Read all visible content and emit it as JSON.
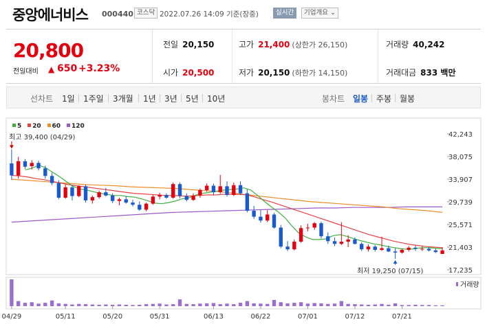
{
  "header": {
    "title": "중앙에너비스",
    "code": "000440",
    "market": "코스닥",
    "timestamp": "2022.07.26 14:09 기준(장중)",
    "realtime_label": "실시간",
    "company_label": "기업개요 ⌄"
  },
  "summary": {
    "price": "20,800",
    "change_label": "전일대비",
    "change_value": "650",
    "change_pct": "+3.23%",
    "prev_label": "전일",
    "prev_value": "20,150",
    "open_label": "시가",
    "open_value": "20,500",
    "high_label": "고가",
    "high_value": "21,400",
    "high_sub": "(상한가 26,150)",
    "low_label": "저가",
    "low_value": "20,150",
    "low_sub": "(하한가 14,150)",
    "volume_label": "거래량",
    "volume_value": "40,242",
    "amount_label": "거래대금",
    "amount_value": "833 백만"
  },
  "periods": {
    "label": "선차트",
    "items": [
      "1일",
      "1주일",
      "3개월",
      "1년",
      "3년",
      "5년",
      "10년"
    ],
    "candle_label": "봉차트",
    "candle_items": [
      "일봉",
      "주봉",
      "월봉"
    ],
    "candle_active": 0
  },
  "colors": {
    "up": "#e4000f",
    "down": "#1a5ad0",
    "ma5": "#3cb23c",
    "ma20": "#e84040",
    "ma60": "#f08c28",
    "ma120": "#9b59c6",
    "volume": "#9b6fd0"
  },
  "chart_data": {
    "type": "candlestick",
    "legend": [
      "5",
      "20",
      "60",
      "120"
    ],
    "y_ticks": [
      "42,243",
      "38,075",
      "33,907",
      "29,739",
      "25,571",
      "21,403",
      "17,235"
    ],
    "y_tick_values": [
      42243,
      38075,
      33907,
      29739,
      25571,
      21403,
      17235
    ],
    "ylim": [
      17235,
      42243
    ],
    "x_ticks": [
      "04/29",
      "05/11",
      "05/20",
      "05/31",
      "06/13",
      "06/22",
      "07/01",
      "07/12",
      "07/21"
    ],
    "x_tick_index": [
      0,
      8,
      15,
      22,
      30,
      37,
      44,
      51,
      58
    ],
    "high_annotation": "최고 39,400 (04/29)",
    "low_annotation": "최저 19,250 (07/15)",
    "volume_label": "거래량",
    "candles": [
      [
        36800,
        39400,
        33800,
        34600
      ],
      [
        34600,
        38000,
        34000,
        37200
      ],
      [
        37200,
        37600,
        35800,
        36200
      ],
      [
        36300,
        37400,
        35700,
        36900
      ],
      [
        36900,
        37300,
        35500,
        35900
      ],
      [
        35900,
        36400,
        34000,
        34500
      ],
      [
        34500,
        35100,
        32800,
        33200
      ],
      [
        33200,
        33700,
        30200,
        30500
      ],
      [
        30500,
        32900,
        30300,
        32400
      ],
      [
        32400,
        32800,
        30000,
        30800
      ],
      [
        30800,
        32800,
        30600,
        32600
      ],
      [
        32600,
        32900,
        29600,
        30000
      ],
      [
        30000,
        30900,
        29400,
        30600
      ],
      [
        30600,
        31800,
        30300,
        31500
      ],
      [
        31500,
        32300,
        30700,
        30900
      ],
      [
        30900,
        31300,
        29500,
        29900
      ],
      [
        29900,
        30500,
        29100,
        30200
      ],
      [
        30200,
        30800,
        29400,
        29600
      ],
      [
        29600,
        30100,
        28900,
        29200
      ],
      [
        29200,
        29800,
        28100,
        28300
      ],
      [
        28300,
        29600,
        28000,
        29400
      ],
      [
        29400,
        31000,
        29200,
        30700
      ],
      [
        30700,
        31400,
        30200,
        31000
      ],
      [
        31000,
        31300,
        30300,
        30500
      ],
      [
        30500,
        33300,
        30300,
        33000
      ],
      [
        33000,
        33300,
        30400,
        30800
      ],
      [
        30800,
        31300,
        29800,
        30100
      ],
      [
        30100,
        31300,
        29900,
        30900
      ],
      [
        30900,
        32200,
        30500,
        31900
      ],
      [
        31900,
        33100,
        31600,
        32700
      ],
      [
        32700,
        33100,
        31000,
        31500
      ],
      [
        31500,
        34700,
        31200,
        32600
      ],
      [
        32600,
        33500,
        30700,
        31000
      ],
      [
        31000,
        33300,
        30800,
        32800
      ],
      [
        32800,
        33500,
        31000,
        31300
      ],
      [
        31300,
        32000,
        27800,
        28100
      ],
      [
        28100,
        29000,
        26600,
        27000
      ],
      [
        27000,
        28200,
        25900,
        26300
      ],
      [
        26300,
        28200,
        26000,
        27400
      ],
      [
        27400,
        27700,
        24800,
        25000
      ],
      [
        25000,
        25500,
        21200,
        21500
      ],
      [
        21500,
        22500,
        20700,
        21000
      ],
      [
        21000,
        22800,
        20800,
        22400
      ],
      [
        22400,
        25400,
        22200,
        24900
      ],
      [
        24900,
        25700,
        24300,
        25000
      ],
      [
        25000,
        26000,
        24600,
        25800
      ],
      [
        25800,
        26100,
        23000,
        23400
      ],
      [
        23400,
        24100,
        22000,
        22500
      ],
      [
        22500,
        23200,
        21600,
        22000
      ],
      [
        22000,
        26000,
        21800,
        22400
      ],
      [
        22400,
        23600,
        21400,
        22800
      ],
      [
        22800,
        23200,
        21900,
        22000
      ],
      [
        22000,
        22300,
        20700,
        21000
      ],
      [
        21000,
        21900,
        20600,
        21500
      ],
      [
        21500,
        21800,
        20600,
        20900
      ],
      [
        20900,
        23300,
        20700,
        21200
      ],
      [
        21200,
        21700,
        20500,
        20600
      ],
      [
        20600,
        21200,
        19250,
        20400
      ],
      [
        20400,
        21100,
        20200,
        20900
      ],
      [
        20900,
        21600,
        20600,
        21300
      ],
      [
        21300,
        21700,
        20700,
        21100
      ],
      [
        21100,
        21500,
        20700,
        21100
      ],
      [
        21100,
        21400,
        20600,
        20800
      ],
      [
        20800,
        21100,
        20300,
        20500
      ],
      [
        20150,
        21400,
        20150,
        20800
      ]
    ],
    "ma5": [
      35600,
      35900,
      36500,
      36000,
      35200,
      34400,
      33500,
      32600,
      32100,
      31900,
      31600,
      31300,
      31100,
      30900,
      30900,
      30700,
      30600,
      30300,
      29900,
      29500,
      29400,
      29600,
      29900,
      30300,
      30500,
      31000,
      31300,
      31500,
      31700,
      31900,
      32000,
      32100,
      32300,
      31900,
      30900,
      29800,
      28800,
      27900,
      26800,
      25300,
      24000,
      23300,
      22800,
      22800,
      22900,
      23500,
      23700,
      23400,
      23000,
      22600,
      22300,
      22000,
      21800,
      21500,
      21300,
      21100,
      21000,
      21100,
      21300,
      21300,
      21200,
      21100
    ],
    "ma20": [
      34600,
      34500,
      34300,
      34000,
      33800,
      33500,
      33200,
      32900,
      32700,
      32500,
      32300,
      32100,
      31900,
      31700,
      31500,
      31300,
      31200,
      31100,
      31000,
      30900,
      30900,
      30800,
      30800,
      30900,
      31000,
      31000,
      31100,
      31100,
      31100,
      31000,
      30600,
      30100,
      29700,
      29200,
      28700,
      28200,
      27700,
      27200,
      26700,
      26200,
      25700,
      25200,
      24700,
      24200,
      23700,
      23300,
      22900,
      22500,
      22200,
      21900,
      21700,
      21500,
      21400,
      21300
    ],
    "ma60": [
      33900,
      33700,
      33500,
      33300,
      33100,
      32900,
      32800,
      32700,
      32500,
      32400,
      32300,
      32200,
      32000,
      31800,
      31600,
      31300,
      31000,
      30700,
      30400,
      30100,
      29800,
      29600,
      29400,
      29200,
      29000,
      28800,
      28500,
      28300,
      28100,
      27800
    ],
    "ma120": [
      26000,
      26200,
      26400,
      26600,
      26800,
      27000,
      27200,
      27400,
      27600,
      27800,
      27900,
      28000,
      28100,
      28200,
      28300,
      28400,
      28500,
      28600,
      28600,
      28700,
      28700,
      28700,
      28800,
      28800,
      28800
    ],
    "volume": [
      95,
      18,
      12,
      14,
      9,
      12,
      20,
      10,
      8,
      6,
      8,
      7,
      6,
      5,
      6,
      5,
      6,
      5,
      4,
      5,
      7,
      8,
      9,
      6,
      7,
      24,
      8,
      7,
      9,
      10,
      11,
      7,
      9,
      7,
      12,
      18,
      10,
      9,
      8,
      22,
      14,
      10,
      12,
      14,
      9,
      11,
      10,
      8,
      9,
      18,
      8,
      7,
      6,
      5,
      6,
      8,
      5,
      10,
      4,
      4,
      5,
      4,
      4,
      3,
      3
    ]
  }
}
